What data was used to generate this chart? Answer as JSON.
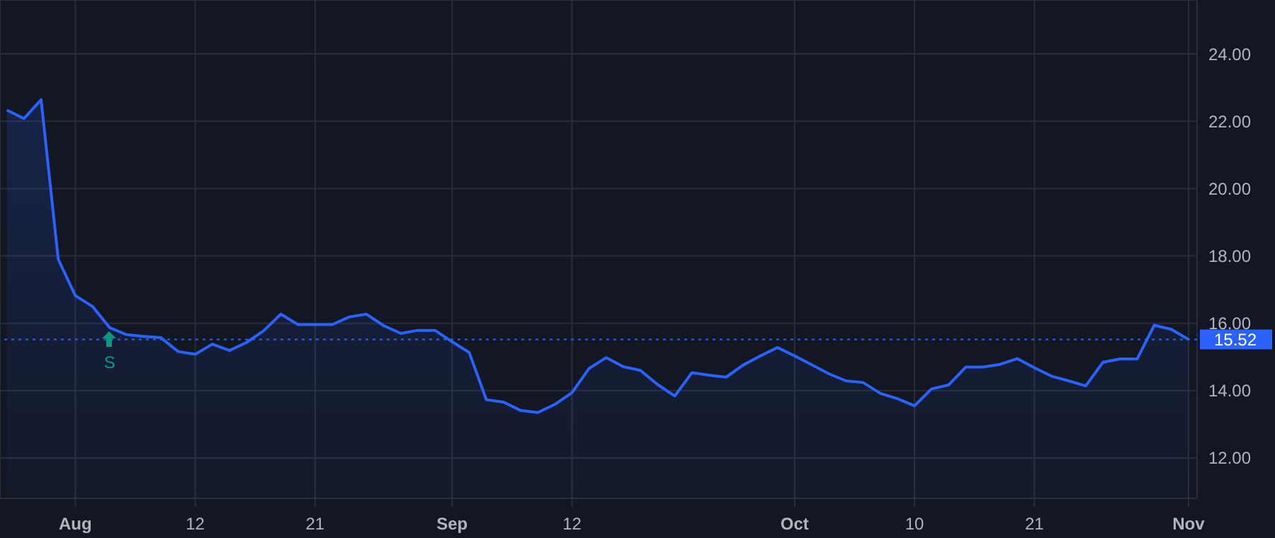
{
  "chart_data": {
    "type": "area",
    "categories": [
      null,
      null,
      null,
      null,
      "Aug",
      null,
      null,
      null,
      null,
      null,
      null,
      "12",
      null,
      null,
      null,
      null,
      null,
      null,
      "21",
      null,
      null,
      null,
      null,
      null,
      null,
      null,
      "Sep",
      null,
      null,
      null,
      null,
      null,
      null,
      "12",
      null,
      null,
      null,
      null,
      null,
      null,
      null,
      null,
      null,
      null,
      null,
      null,
      "Oct",
      null,
      null,
      null,
      null,
      null,
      null,
      "10",
      null,
      null,
      null,
      null,
      null,
      null,
      "21",
      null,
      null,
      null,
      null,
      null,
      null,
      null,
      null,
      "Nov"
    ],
    "series": [
      {
        "color": "#2962ff",
        "values": [
          22.33,
          22.08,
          22.64,
          17.9,
          16.82,
          16.5,
          15.87,
          15.66,
          15.61,
          15.57,
          15.16,
          15.08,
          15.38,
          15.19,
          15.43,
          15.78,
          16.27,
          15.96,
          15.96,
          15.96,
          16.19,
          16.27,
          15.93,
          15.7,
          15.79,
          15.79,
          15.45,
          15.13,
          13.73,
          13.66,
          13.41,
          13.35,
          13.59,
          13.94,
          14.66,
          14.98,
          14.71,
          14.6,
          14.18,
          13.84,
          14.53,
          14.46,
          14.4,
          14.76,
          15.03,
          15.28,
          15.03,
          14.77,
          14.5,
          14.29,
          14.24,
          13.92,
          13.76,
          13.55,
          14.05,
          14.17,
          14.7,
          14.7,
          14.78,
          14.95,
          14.68,
          14.43,
          14.29,
          14.14,
          14.84,
          14.94,
          14.94,
          15.94,
          15.82,
          15.52
        ]
      }
    ],
    "ylim": [
      10.8,
      25.6
    ],
    "yticks": [
      {
        "value": 12,
        "label": "12.00"
      },
      {
        "value": 14,
        "label": "14.00"
      },
      {
        "value": 16,
        "label": "16.00"
      },
      {
        "value": 18,
        "label": "18.00"
      },
      {
        "value": 20,
        "label": "20.00"
      },
      {
        "value": 22,
        "label": "22.00"
      },
      {
        "value": 24,
        "label": "24.00"
      }
    ],
    "grid": true,
    "ref_lines": [
      {
        "axis": "y",
        "value": 15.52,
        "label": "15.52",
        "color": "#2962ff",
        "line_style": "dotted"
      }
    ],
    "annotations": [
      "S"
    ]
  }
}
